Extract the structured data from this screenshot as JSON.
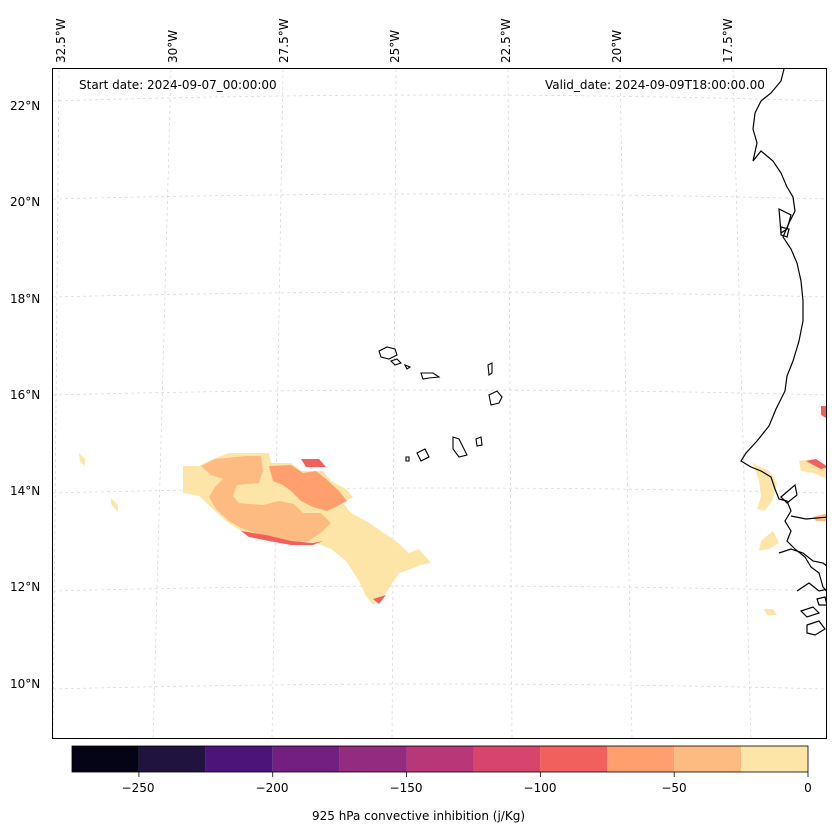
{
  "map": {
    "start_date": "Start date: 2024-09-07_00:00:00",
    "valid_date": "Valid_date: 2024-09-09T18:00:00.00",
    "longitude_labels": [
      "32.5°W",
      "30°W",
      "27.5°W",
      "25°W",
      "22.5°W",
      "20°W",
      "17.5°W"
    ],
    "latitude_labels": [
      "22°N",
      "20°N",
      "18°N",
      "16°N",
      "14°N",
      "12°N",
      "10°N"
    ],
    "variable": "925 hPa convective inhibition",
    "units": "j/Kg"
  },
  "colorbar": {
    "label": "925 hPa convective inhibition (j/Kg)",
    "tick_labels": [
      "−250",
      "−200",
      "−150",
      "−100",
      "−50",
      "0"
    ],
    "range": [
      -275,
      0
    ],
    "levels": [
      -275,
      -250,
      -225,
      -200,
      -175,
      -150,
      -125,
      -100,
      -75,
      -50,
      -25,
      0
    ],
    "colors": [
      "#050416",
      "#211340",
      "#4c1379",
      "#721f81",
      "#932b80",
      "#b73779",
      "#d8456c",
      "#f1605d",
      "#fe9f6d",
      "#febb81",
      "#fde5a7"
    ]
  }
}
